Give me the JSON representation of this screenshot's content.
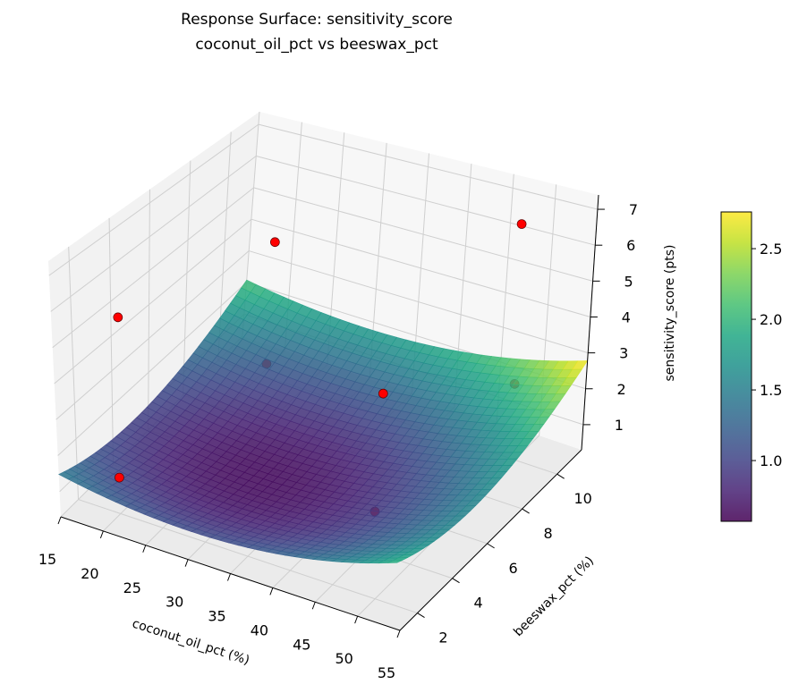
{
  "chart_data": {
    "type": "surface3d",
    "title": "Response Surface: sensitivity_score",
    "subtitle": "coconut_oil_pct vs beeswax_pct",
    "xlabel": "coconut_oil_pct (%)",
    "ylabel": "beeswax_pct (%)",
    "zlabel": "sensitivity_score (pts)",
    "xlim": [
      15,
      55
    ],
    "ylim": [
      1,
      11.4
    ],
    "zlim": [
      0.3,
      7.4
    ],
    "xticks": [
      "15",
      "20",
      "25",
      "30",
      "35",
      "40",
      "45",
      "50",
      "55"
    ],
    "yticks": [
      "2",
      "4",
      "6",
      "8",
      "10"
    ],
    "zticks": [
      "1",
      "2",
      "3",
      "4",
      "5",
      "6",
      "7"
    ],
    "grid": true,
    "colormap": "viridis",
    "colorbar": {
      "range": [
        0.57,
        2.76
      ],
      "ticks": [
        "1.0",
        "1.5",
        "2.0",
        "2.5"
      ],
      "placement": "right"
    },
    "surface_range": [
      0.6,
      2.75
    ],
    "points": [
      {
        "x": 17,
        "y": 3.5,
        "z": 4.9
      },
      {
        "x": 27,
        "y": 7.2,
        "z": 6.1
      },
      {
        "x": 51,
        "y": 9.3,
        "z": 7.2
      },
      {
        "x": 42.2,
        "y": 6.2,
        "z": 3.3
      },
      {
        "x": 20,
        "y": 2,
        "z": 1.3
      },
      {
        "x": 23,
        "y": 8.8,
        "z": 1.5
      },
      {
        "x": 49,
        "y": 2.6,
        "z": 2.2
      },
      {
        "x": 55,
        "y": 7.4,
        "z": 3.9
      }
    ],
    "point_color": "#ff0000",
    "pane_color": "#f2f2f2",
    "grid_color": "#cfcfcf"
  }
}
